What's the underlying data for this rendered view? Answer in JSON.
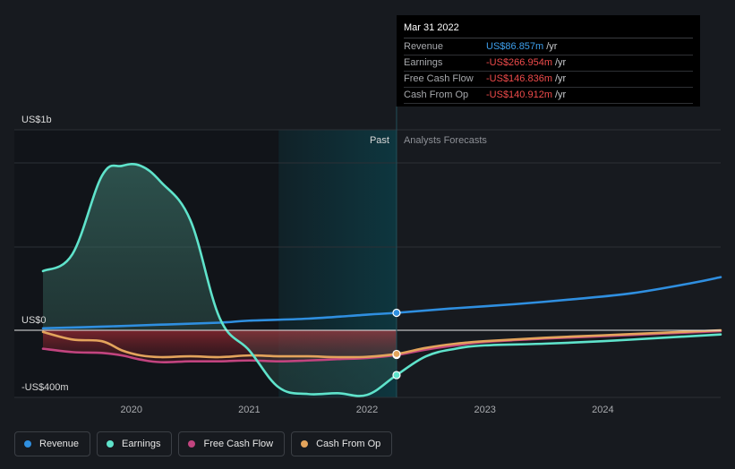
{
  "tooltip": {
    "date": "Mar 31 2022",
    "rows": [
      {
        "label": "Revenue",
        "value": "US$86.857m",
        "unit": "/yr"
      },
      {
        "label": "Earnings",
        "value": "-US$266.954m",
        "unit": "/yr"
      },
      {
        "label": "Free Cash Flow",
        "value": "-US$146.836m",
        "unit": "/yr"
      },
      {
        "label": "Cash From Op",
        "value": "-US$140.912m",
        "unit": "/yr"
      }
    ]
  },
  "legend": [
    {
      "label": "Revenue",
      "color": "#2f8fe0"
    },
    {
      "label": "Earnings",
      "color": "#5fe3cb"
    },
    {
      "label": "Free Cash Flow",
      "color": "#c2447f"
    },
    {
      "label": "Cash From Op",
      "color": "#e3a45c"
    }
  ],
  "colors": {
    "background": "#171a1f",
    "revenue": "#2f8fe0",
    "earnings": "#5fe3cb",
    "free_cash_flow": "#c2447f",
    "cash_from_op": "#e3a45c",
    "past_region": "#111419",
    "forecast_band": "#0e3a43"
  },
  "chart_data": {
    "type": "line",
    "ylabel_top": "US$1b",
    "ylabel_zero": "US$0",
    "ylabel_bottom": "-US$400m",
    "ylim": [
      -400,
      1000
    ],
    "xlim": [
      2019.25,
      2025.0
    ],
    "x_ticks": [
      {
        "value": 2020,
        "label": "2020"
      },
      {
        "value": 2021,
        "label": "2021"
      },
      {
        "value": 2022,
        "label": "2022"
      },
      {
        "value": 2023,
        "label": "2023"
      },
      {
        "value": 2024,
        "label": "2024"
      }
    ],
    "divider_x": 2022.25,
    "highlight_start": 2021.25,
    "past_label": "Past",
    "forecast_label": "Analysts Forecasts",
    "series": [
      {
        "name": "Revenue",
        "key": "revenue",
        "x": [
          2019.25,
          2019.75,
          2020.25,
          2020.75,
          2021.0,
          2021.5,
          2022.0,
          2022.25,
          2022.75,
          2023.25,
          2023.75,
          2024.25,
          2024.75,
          2025.0
        ],
        "y": [
          10,
          18,
          28,
          38,
          48,
          58,
          78,
          87,
          110,
          130,
          155,
          185,
          235,
          265
        ],
        "marker_x": 2022.25
      },
      {
        "name": "Earnings",
        "key": "earnings",
        "fill": true,
        "x": [
          2019.25,
          2019.5,
          2019.75,
          2019.92,
          2020.08,
          2020.25,
          2020.5,
          2020.75,
          2021.0,
          2021.25,
          2021.5,
          2021.75,
          2022.0,
          2022.25,
          2022.5,
          2022.75,
          2023.0,
          2023.5,
          2024.0,
          2024.5,
          2025.0
        ],
        "y": [
          295,
          380,
          770,
          820,
          820,
          740,
          550,
          60,
          -120,
          -340,
          -380,
          -375,
          -385,
          -267,
          -155,
          -110,
          -90,
          -80,
          -65,
          -45,
          -25
        ],
        "marker_x": 2022.25
      },
      {
        "name": "Free Cash Flow",
        "key": "free_cash_flow",
        "fill": true,
        "x": [
          2019.25,
          2019.5,
          2019.75,
          2019.92,
          2020.08,
          2020.25,
          2020.5,
          2020.75,
          2021.0,
          2021.25,
          2021.5,
          2021.75,
          2022.0,
          2022.25,
          2022.5,
          2022.75,
          2023.0,
          2023.5,
          2024.0,
          2024.5,
          2025.0
        ],
        "y": [
          -110,
          -130,
          -135,
          -150,
          -175,
          -190,
          -185,
          -185,
          -180,
          -185,
          -180,
          -172,
          -165,
          -147,
          -115,
          -90,
          -70,
          -50,
          -35,
          -20,
          -5
        ],
        "marker_x": 2022.25
      },
      {
        "name": "Cash From Op",
        "key": "cash_from_op",
        "x": [
          2019.25,
          2019.5,
          2019.75,
          2019.92,
          2020.08,
          2020.25,
          2020.5,
          2020.75,
          2021.0,
          2021.25,
          2021.5,
          2021.75,
          2022.0,
          2022.25,
          2022.5,
          2022.75,
          2023.0,
          2023.5,
          2024.0,
          2024.5,
          2025.0
        ],
        "y": [
          -10,
          -55,
          -65,
          -120,
          -150,
          -160,
          -155,
          -160,
          -150,
          -155,
          -155,
          -160,
          -158,
          -141,
          -105,
          -80,
          -65,
          -45,
          -30,
          -15,
          0
        ],
        "marker_x": 2022.25
      }
    ]
  }
}
